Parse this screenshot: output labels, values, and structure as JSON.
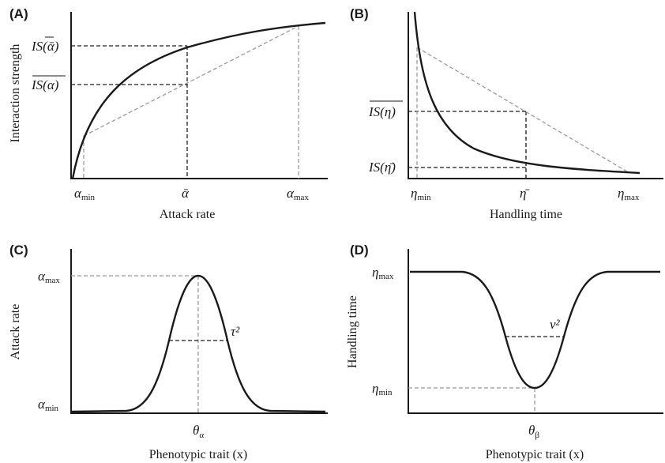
{
  "panels": {
    "a": {
      "label": "(A)",
      "ylabel": "Interaction strength",
      "xlabel": "Attack rate",
      "y_tick_top": "IS(ᾱ)",
      "y_tick_bottom": "IS(α)",
      "x_min": "α",
      "x_min_sub": "min",
      "x_mid": "ᾱ",
      "x_max": "α",
      "x_max_sub": "max"
    },
    "b": {
      "label": "(B)",
      "xlabel": "Handling time",
      "y_tick_top": "IS(η)",
      "y_tick_bottom": "IS(η̄)",
      "x_min": "η",
      "x_min_sub": "min",
      "x_mid": "η̄",
      "x_max": "η",
      "x_max_sub": "max"
    },
    "c": {
      "label": "(C)",
      "ylabel": "Attack rate",
      "xlabel": "Phenotypic trait (x)",
      "y_top": "α",
      "y_top_sub": "max",
      "y_bottom": "α",
      "y_bottom_sub": "min",
      "width_label": "τ²",
      "x_center": "θ",
      "x_center_sub": "α"
    },
    "d": {
      "label": "(D)",
      "ylabel": "Handling time",
      "xlabel": "Phenotypic trait (x)",
      "y_top": "η",
      "y_top_sub": "max",
      "y_bottom": "η",
      "y_bottom_sub": "min",
      "width_label": "ν²",
      "x_center": "θ",
      "x_center_sub": "β"
    }
  }
}
